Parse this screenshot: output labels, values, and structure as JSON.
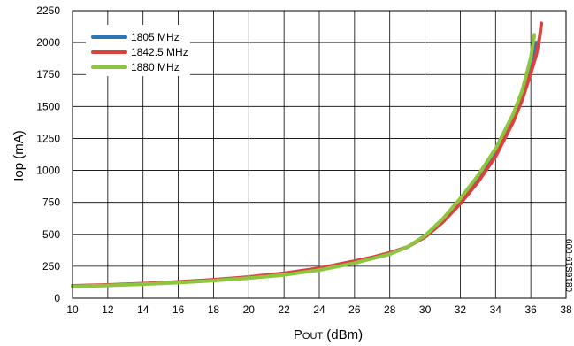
{
  "chart_data": {
    "type": "line",
    "title": "",
    "xlabel_main": "P",
    "xlabel_sub": "OUT",
    "xlabel_unit": " (dBm)",
    "ylabel": "Iop (mA)",
    "xlim": [
      10,
      38
    ],
    "ylim": [
      0,
      2250
    ],
    "xticks": [
      10,
      12,
      14,
      16,
      18,
      20,
      22,
      24,
      26,
      28,
      30,
      32,
      34,
      36,
      38
    ],
    "yticks": [
      0,
      250,
      500,
      750,
      1000,
      1250,
      1500,
      1750,
      2000,
      2250
    ],
    "grid": true,
    "legend_position": "top-left",
    "figure_id": "0816S19-009",
    "series": [
      {
        "name": "1805 MHz",
        "color": "#2e75b6",
        "x": [
          10,
          12,
          14,
          16,
          18,
          20,
          22,
          24,
          26,
          27,
          28,
          29,
          30,
          31,
          32,
          33,
          34,
          35,
          35.5,
          36,
          36.3
        ],
        "y": [
          95,
          102,
          112,
          125,
          142,
          162,
          190,
          230,
          285,
          318,
          350,
          400,
          480,
          600,
          750,
          920,
          1130,
          1400,
          1580,
          1800,
          2000
        ]
      },
      {
        "name": "1842.5 MHz",
        "color": "#d9433f",
        "x": [
          10,
          12,
          14,
          16,
          18,
          20,
          22,
          24,
          26,
          27,
          28,
          29,
          30,
          31,
          32,
          33,
          34,
          35,
          35.5,
          36,
          36.3,
          36.5,
          36.6
        ],
        "y": [
          97,
          104,
          114,
          128,
          145,
          166,
          195,
          235,
          290,
          320,
          355,
          400,
          480,
          595,
          740,
          910,
          1110,
          1380,
          1550,
          1760,
          1900,
          2040,
          2150
        ]
      },
      {
        "name": "1880 MHz",
        "color": "#8cc63f",
        "x": [
          10,
          12,
          14,
          16,
          18,
          20,
          22,
          24,
          26,
          27,
          28,
          29,
          30,
          31,
          32,
          33,
          34,
          35,
          35.5,
          36,
          36.2
        ],
        "y": [
          93,
          100,
          110,
          122,
          138,
          158,
          182,
          220,
          275,
          310,
          345,
          400,
          490,
          620,
          780,
          960,
          1170,
          1440,
          1620,
          1880,
          2060
        ]
      }
    ]
  }
}
